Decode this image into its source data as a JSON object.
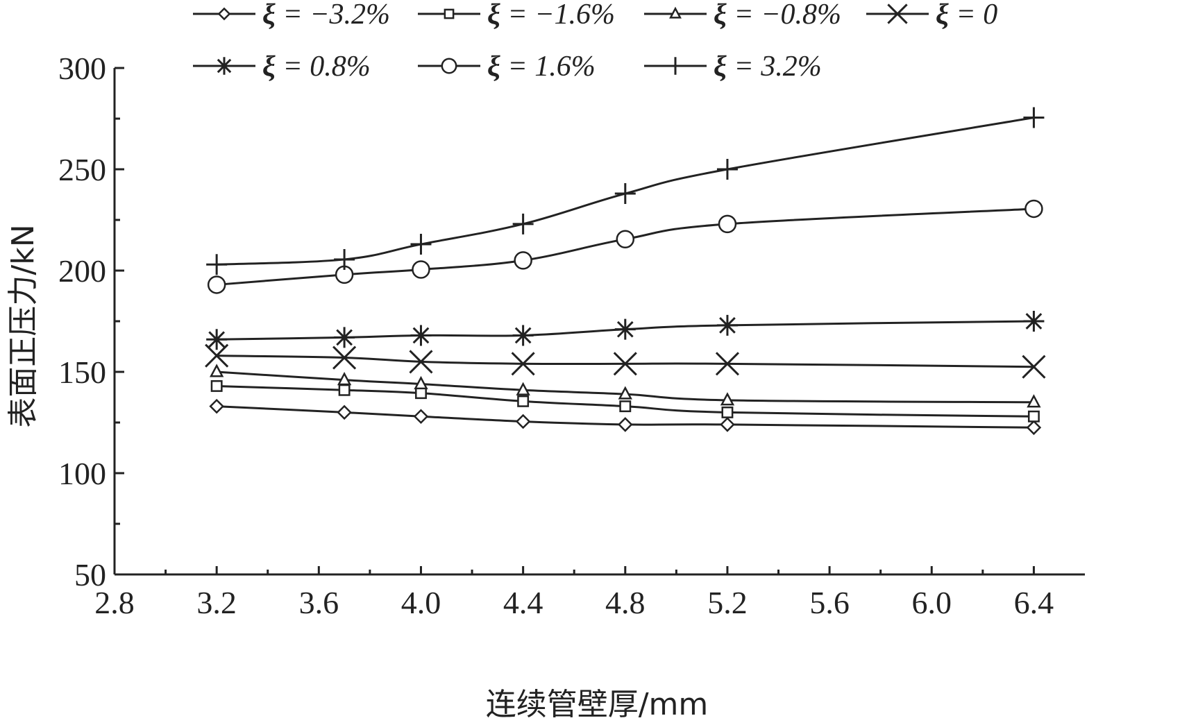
{
  "chart_data": {
    "type": "line",
    "title": "",
    "xlabel": "连续管壁厚/mm",
    "ylabel": "表面正压力/kN",
    "xlim": [
      2.8,
      6.6
    ],
    "ylim": [
      50,
      300
    ],
    "xticks": [
      2.8,
      3.2,
      3.6,
      4.0,
      4.4,
      4.8,
      5.2,
      5.6,
      6.0,
      6.4
    ],
    "xtick_labels": [
      "2.8",
      "3.2",
      "3.6",
      "4.0",
      "4.4",
      "4.8",
      "5.2",
      "5.6",
      "6.0",
      "6.4"
    ],
    "yticks": [
      50,
      100,
      150,
      200,
      250,
      300
    ],
    "ytick_labels": [
      "50",
      "100",
      "150",
      "200",
      "250",
      "300"
    ],
    "grid": false,
    "legend_position": "top",
    "x": [
      3.2,
      3.7,
      4.0,
      4.4,
      4.8,
      5.2,
      6.4
    ],
    "series": [
      {
        "name": "ξ = −3.2%",
        "xi_symbol": "ξ",
        "label_rest": " = −3.2%",
        "marker": "diamond",
        "values": [
          133,
          130,
          128,
          125.5,
          124,
          124,
          122.5
        ]
      },
      {
        "name": "ξ = −1.6%",
        "xi_symbol": "ξ",
        "label_rest": " = −1.6%",
        "marker": "square",
        "values": [
          143,
          141,
          139.5,
          135.5,
          133,
          130,
          128
        ]
      },
      {
        "name": "ξ = −0.8%",
        "xi_symbol": "ξ",
        "label_rest": " = −0.8%",
        "marker": "triangle",
        "values": [
          150,
          146,
          144,
          141,
          139,
          136,
          135
        ]
      },
      {
        "name": "ξ = 0",
        "xi_symbol": "ξ",
        "label_rest": " = 0",
        "marker": "x",
        "values": [
          158,
          157,
          155,
          154,
          154,
          154,
          152.5
        ]
      },
      {
        "name": "ξ = 0.8%",
        "xi_symbol": "ξ",
        "label_rest": " = 0.8%",
        "marker": "asterisk",
        "values": [
          166,
          167,
          168,
          168,
          171,
          173,
          175
        ]
      },
      {
        "name": "ξ = 1.6%",
        "xi_symbol": "ξ",
        "label_rest": " = 1.6%",
        "marker": "circle",
        "values": [
          193,
          198,
          200.5,
          205,
          215.5,
          223,
          230.5
        ]
      },
      {
        "name": "ξ = 3.2%",
        "xi_symbol": "ξ",
        "label_rest": " = 3.2%",
        "marker": "plus",
        "values": [
          203,
          205.5,
          213,
          223,
          238,
          250,
          275.5
        ]
      }
    ]
  }
}
